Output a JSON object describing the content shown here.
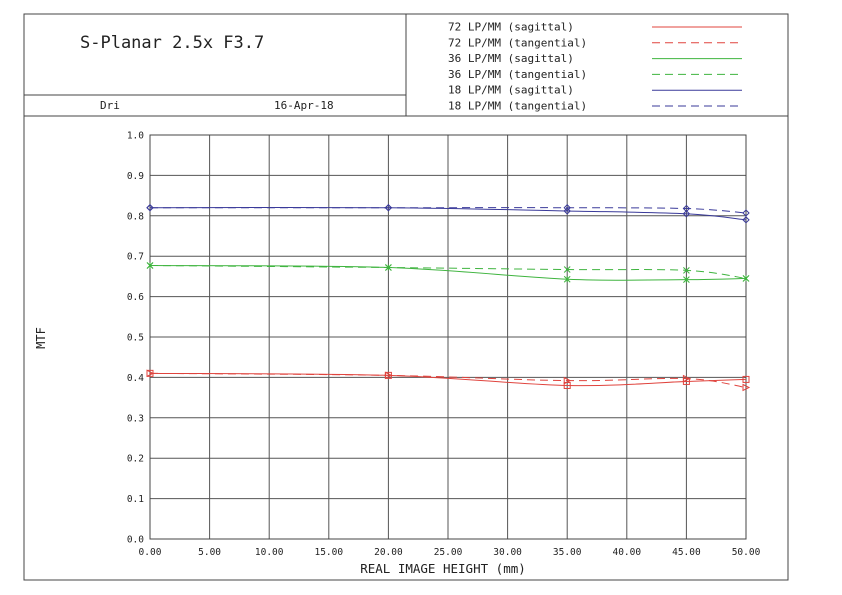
{
  "header": {
    "title": "S-Planar 2.5x F3.7",
    "author": "Dri",
    "date": "16-Apr-18"
  },
  "colors": {
    "red": "#e0443e",
    "green": "#3fb43f",
    "blue": "#3a3a9a",
    "frame": "#444444",
    "grid": "#555555"
  },
  "chart_data": {
    "type": "line",
    "xlabel": "REAL IMAGE HEIGHT (mm)",
    "ylabel": "MTF",
    "xlim": [
      0,
      50
    ],
    "ylim": [
      0,
      1
    ],
    "xticks": [
      "0.00",
      "5.00",
      "10.00",
      "15.00",
      "20.00",
      "25.00",
      "30.00",
      "35.00",
      "40.00",
      "45.00",
      "50.00"
    ],
    "yticks": [
      "0.0",
      "0.1",
      "0.2",
      "0.3",
      "0.4",
      "0.5",
      "0.6",
      "0.7",
      "0.8",
      "0.9",
      "1.0"
    ],
    "grid": true,
    "legend_position": "top-right",
    "x": [
      0,
      20,
      35,
      45,
      50
    ],
    "series": [
      {
        "name": "72 LP/MM (sagittal)",
        "color": "red",
        "dash": false,
        "marker": "square",
        "values": [
          0.41,
          0.405,
          0.38,
          0.39,
          0.395
        ]
      },
      {
        "name": "72 LP/MM (tangential)",
        "color": "red",
        "dash": true,
        "marker": "triangle",
        "values": [
          0.41,
          0.405,
          0.392,
          0.397,
          0.375
        ]
      },
      {
        "name": "36 LP/MM (sagittal)",
        "color": "green",
        "dash": false,
        "marker": "star",
        "values": [
          0.677,
          0.672,
          0.643,
          0.642,
          0.645
        ]
      },
      {
        "name": "36 LP/MM (tangential)",
        "color": "green",
        "dash": true,
        "marker": "x",
        "values": [
          0.677,
          0.672,
          0.667,
          0.665,
          0.645
        ]
      },
      {
        "name": "18 LP/MM (sagittal)",
        "color": "blue",
        "dash": false,
        "marker": "diamond",
        "values": [
          0.82,
          0.82,
          0.812,
          0.805,
          0.79
        ]
      },
      {
        "name": "18 LP/MM (tangential)",
        "color": "blue",
        "dash": true,
        "marker": "open",
        "values": [
          0.82,
          0.82,
          0.82,
          0.818,
          0.807
        ]
      }
    ]
  }
}
